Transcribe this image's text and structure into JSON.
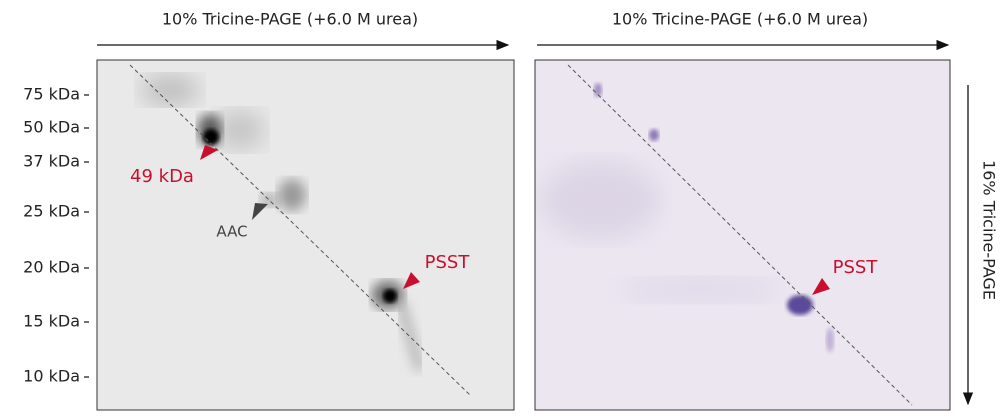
{
  "panels": [
    {
      "title": "10% Tricine-PAGE (+6.0 M urea)",
      "annotations": [
        "49 kDa",
        "AAC",
        "PSST"
      ]
    },
    {
      "title": "10% Tricine-PAGE (+6.0 M urea)",
      "annotations": [
        "PSST"
      ]
    }
  ],
  "markers": [
    "75 kDa",
    "50 kDa",
    "37 kDa",
    "25 kDa",
    "20 kDa",
    "15 kDa",
    "10 kDa"
  ],
  "side_label": "16% Tricine-PAGE"
}
